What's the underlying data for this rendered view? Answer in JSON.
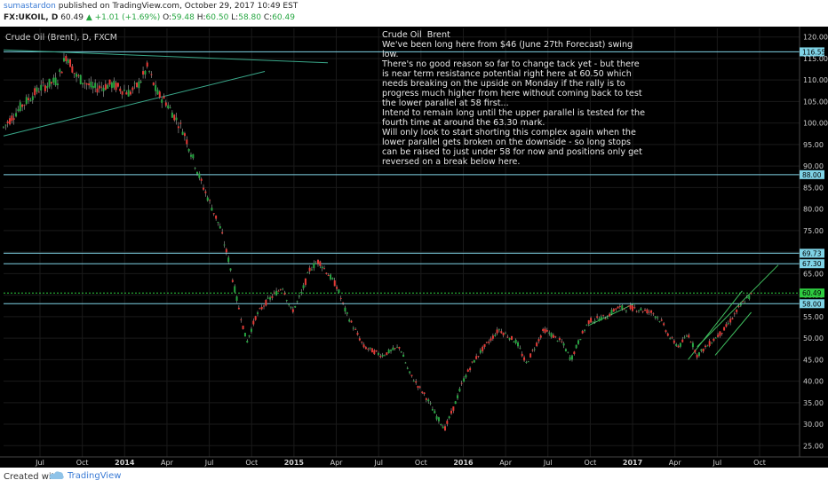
{
  "header": {
    "author": "sumastardon",
    "published": " published on TradingView.com, October 29, 2017 10:49 EST",
    "symbol": "FX:UKOIL, D",
    "last": "60.49",
    "change": "▲ +1.01 (+1.69%)",
    "o_label": "O:",
    "o_val": "59.48",
    "h_label": "H:",
    "h_val": "60.50",
    "l_label": "L:",
    "l_val": "58.80",
    "c_label": "C:",
    "c_val": "60.49"
  },
  "chart_title": "Crude Oil (Brent), D, FXCM",
  "annotation": {
    "title": "Crude Oil  Brent",
    "body": "We've been long here from $46 (June 27th Forecast) swing low.\nThere's no good reason so far to change tack yet - but there is near term resistance potential right here at 60.50 which needs breaking on the upside on Monday if the rally is to progress much higher from here without coming back to test the lower parallel at 58 first...\nIntend to remain long until the upper parallel is tested for the fourth time at around the 63.30 mark.\nWill only look to start shorting this complex again when the lower parallel gets broken on the downside - so long stops can be raised to just under 58 for now and positions only get reversed on a break below here."
  },
  "footer": {
    "created_with": "Created with",
    "brand": "TradingView",
    "brand_icon": "tradingview-cloud-icon"
  },
  "colors": {
    "background": "#000000",
    "grid": "#1a1a1a",
    "up": "#26a641",
    "down": "#e53935",
    "level_line": "#7fd3e6",
    "trend_line": "#3aa88a",
    "current_line": "#2ecc40",
    "channel": "#3fbf5f"
  },
  "chart_data": {
    "type": "candlestick",
    "ylim": [
      23,
      122
    ],
    "y_ticks": [
      "120.00",
      "115.00",
      "110.00",
      "105.00",
      "100.00",
      "95.00",
      "90.00",
      "85.00",
      "80.00",
      "75.00",
      "70.00",
      "65.00",
      "60.00",
      "55.00",
      "50.00",
      "45.00",
      "40.00",
      "35.00",
      "30.00",
      "25.00"
    ],
    "x_ticks": [
      "Jul",
      "Oct",
      "2014",
      "Apr",
      "Jul",
      "Oct",
      "2015",
      "Apr",
      "Jul",
      "Oct",
      "2016",
      "Apr",
      "Jul",
      "Oct",
      "2017",
      "Apr",
      "Jul",
      "Oct"
    ],
    "price_path": [
      [
        0,
        99
      ],
      [
        2,
        104
      ],
      [
        4,
        108
      ],
      [
        6,
        110
      ],
      [
        7,
        116
      ],
      [
        8,
        111
      ],
      [
        10,
        108
      ],
      [
        12,
        109
      ],
      [
        14,
        107
      ],
      [
        15,
        109
      ],
      [
        16,
        113
      ],
      [
        17,
        107
      ],
      [
        18,
        105
      ],
      [
        20,
        98
      ],
      [
        22,
        86
      ],
      [
        24,
        76
      ],
      [
        25,
        68
      ],
      [
        26,
        58
      ],
      [
        27,
        49
      ],
      [
        28,
        55
      ],
      [
        29,
        58
      ],
      [
        31,
        62
      ],
      [
        32,
        56
      ],
      [
        33,
        60
      ],
      [
        34,
        66
      ],
      [
        35,
        68
      ],
      [
        36,
        65
      ],
      [
        37,
        62
      ],
      [
        38,
        56
      ],
      [
        40,
        48
      ],
      [
        42,
        46
      ],
      [
        44,
        48
      ],
      [
        45,
        42
      ],
      [
        47,
        36
      ],
      [
        48,
        32
      ],
      [
        49,
        29
      ],
      [
        50,
        34
      ],
      [
        51,
        40
      ],
      [
        52,
        44
      ],
      [
        53,
        47
      ],
      [
        55,
        52
      ],
      [
        57,
        49
      ],
      [
        58,
        44
      ],
      [
        59,
        48
      ],
      [
        60,
        52
      ],
      [
        62,
        49
      ],
      [
        63,
        45
      ],
      [
        64,
        50
      ],
      [
        65,
        54
      ],
      [
        67,
        55
      ],
      [
        68,
        57
      ],
      [
        70,
        57
      ],
      [
        72,
        56
      ],
      [
        73,
        54
      ],
      [
        74,
        50
      ],
      [
        75,
        48
      ],
      [
        76,
        51
      ],
      [
        77,
        46
      ],
      [
        78,
        48
      ],
      [
        79,
        50
      ],
      [
        80,
        52
      ],
      [
        81,
        55
      ],
      [
        82,
        58
      ],
      [
        83,
        60
      ]
    ],
    "horizontal_levels": [
      {
        "value": 116.55,
        "label": "116.55"
      },
      {
        "value": 88.0,
        "label": "88.00"
      },
      {
        "value": 69.73,
        "label": "69.73"
      },
      {
        "value": 67.3,
        "label": "67.30"
      },
      {
        "value": 60.49,
        "label": "60.49",
        "current": true
      },
      {
        "value": 58.0,
        "label": "58.00"
      }
    ],
    "trend_lines": [
      {
        "from": [
          0,
          117
        ],
        "to": [
          36,
          114
        ]
      },
      {
        "from": [
          0,
          97
        ],
        "to": [
          29,
          112
        ]
      },
      {
        "from": [
          65,
          53
        ],
        "to": [
          70,
          58
        ]
      },
      {
        "from": [
          76,
          45
        ],
        "to": [
          82,
          61
        ]
      },
      {
        "from": [
          77,
          48
        ],
        "to": [
          86,
          67
        ]
      },
      {
        "from": [
          79,
          46
        ],
        "to": [
          83,
          56
        ]
      }
    ]
  }
}
